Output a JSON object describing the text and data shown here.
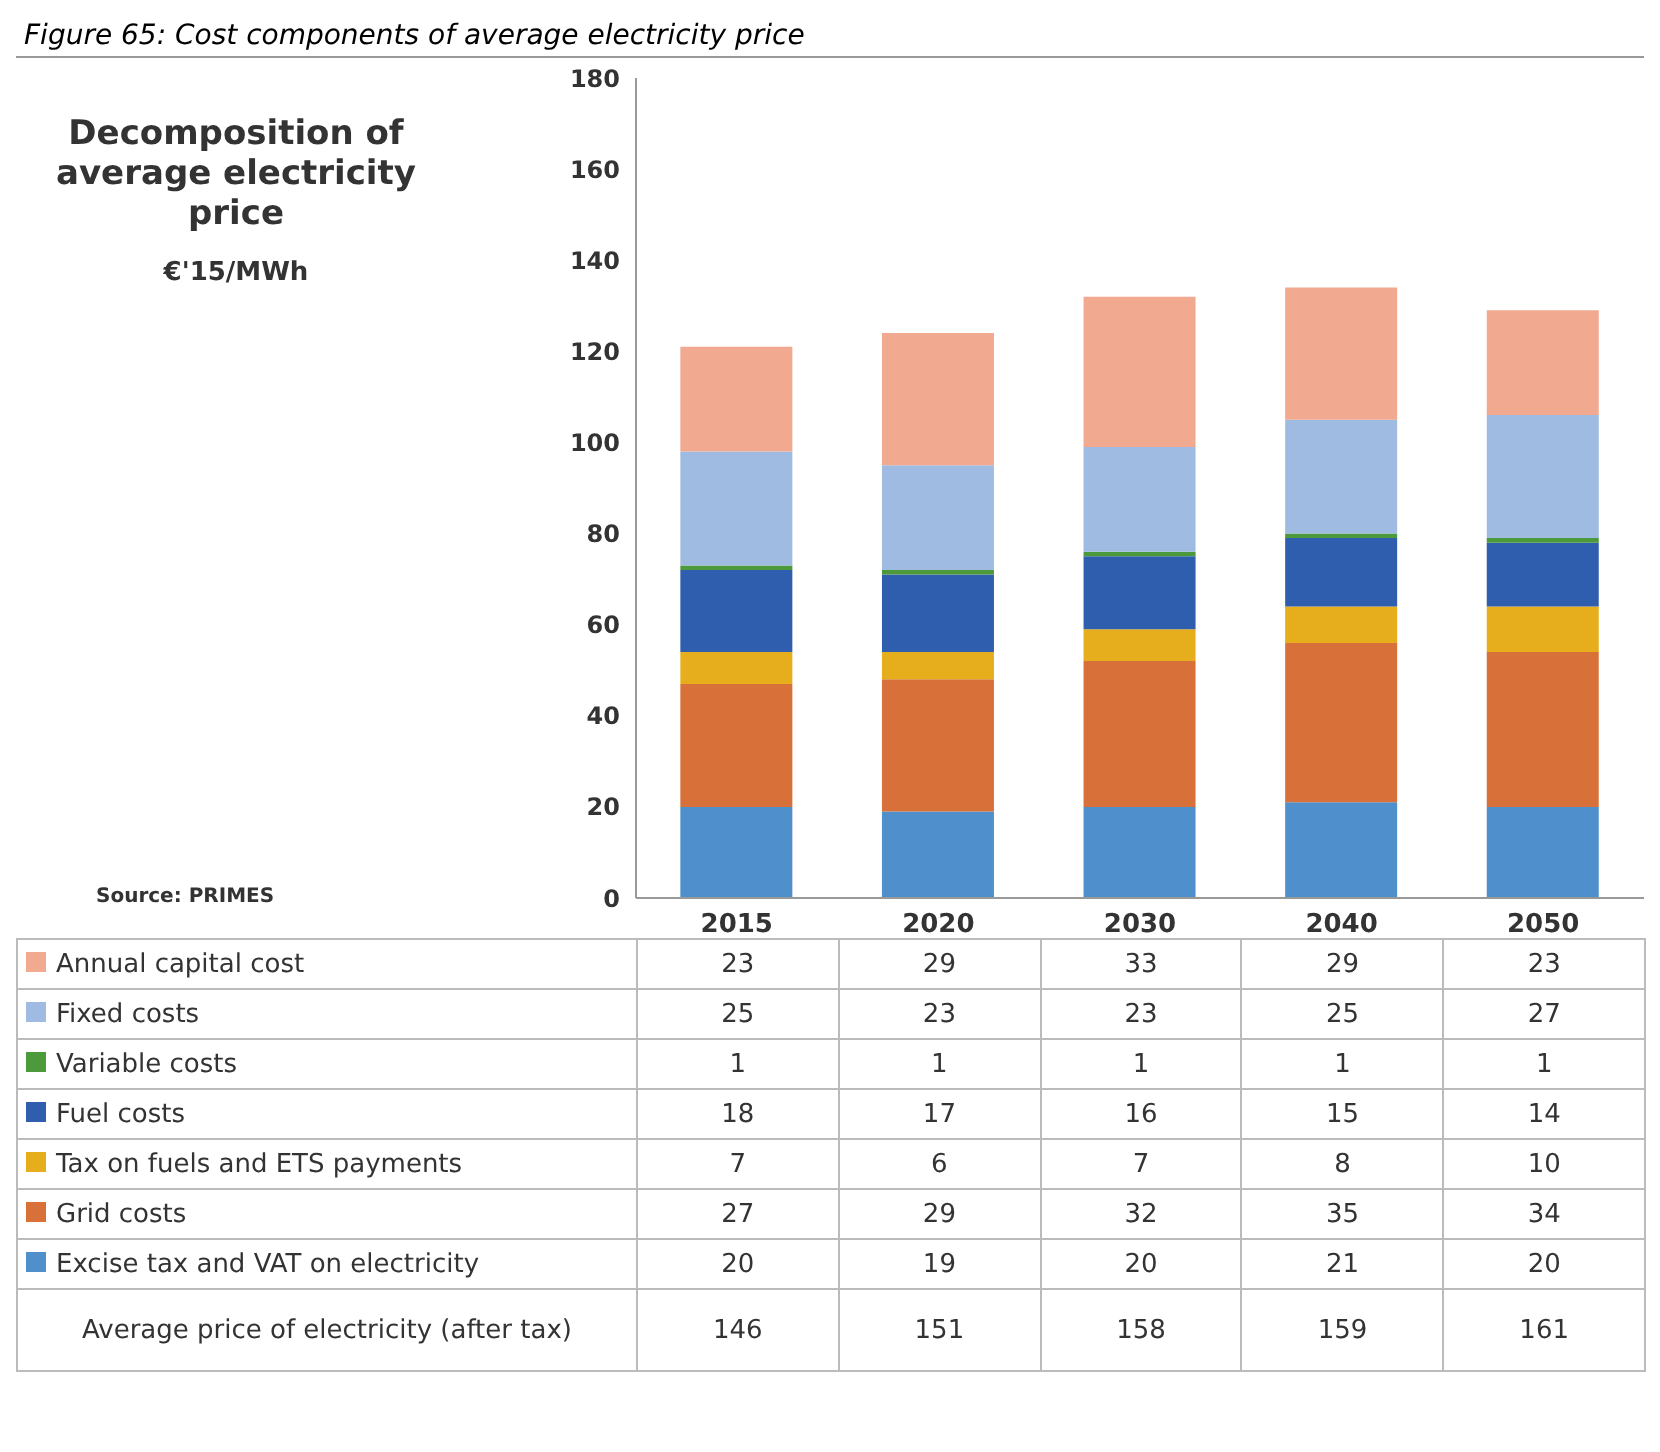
{
  "chart_data": {
    "type": "bar",
    "stacked": true,
    "title": "Figure 65: Cost components of average electricity price",
    "subtitle": "Decomposition of average electricity price",
    "categories": [
      "2015",
      "2020",
      "2030",
      "2040",
      "2050"
    ],
    "series": [
      {
        "name": "Excise tax and VAT on electricity",
        "color": "#4f8fcb",
        "values": [
          20,
          19,
          20,
          21,
          20
        ]
      },
      {
        "name": "Grid costs",
        "color": "#d8703a",
        "values": [
          27,
          29,
          32,
          35,
          34
        ]
      },
      {
        "name": "Tax on fuels and ETS payments",
        "color": "#e6ae1c",
        "values": [
          7,
          6,
          7,
          8,
          10
        ]
      },
      {
        "name": "Fuel costs",
        "color": "#2f5eaf",
        "values": [
          18,
          17,
          16,
          15,
          14
        ]
      },
      {
        "name": "Variable costs",
        "color": "#4c9a3c",
        "values": [
          1,
          1,
          1,
          1,
          1
        ]
      },
      {
        "name": "Fixed costs",
        "color": "#9fbbe2",
        "values": [
          25,
          23,
          23,
          25,
          27
        ]
      },
      {
        "name": "Annual capital cost",
        "color": "#f1a98f",
        "values": [
          23,
          29,
          33,
          29,
          23
        ]
      }
    ],
    "ylim": [
      0,
      180
    ],
    "yticks": [
      0,
      20,
      40,
      60,
      80,
      100,
      120,
      140,
      160,
      180
    ],
    "grid": false,
    "legend": "bottom",
    "data_labels": true,
    "annotations": [
      "€'15/MWh",
      "Source: PRIMES",
      "Average price of electricity (after tax)",
      "146",
      "151",
      "158",
      "159",
      "161"
    ]
  }
}
